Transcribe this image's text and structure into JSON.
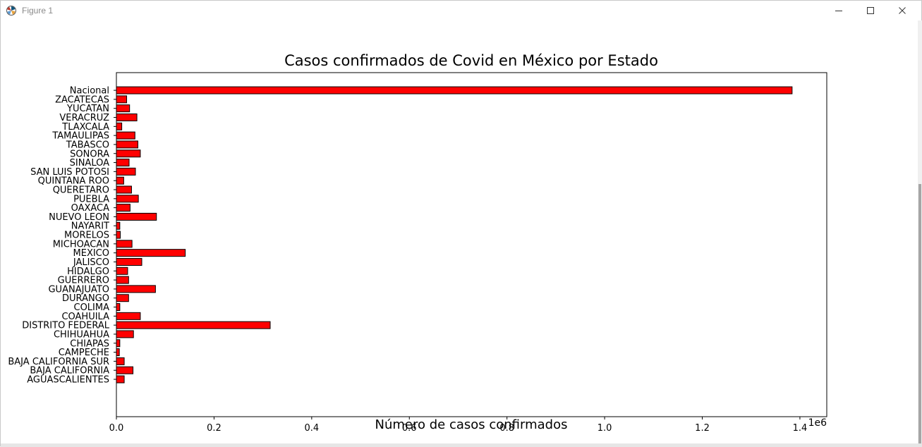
{
  "window": {
    "title": "Figure 1",
    "controls": {
      "minimize": "minimize-icon",
      "maximize": "maximize-icon",
      "close": "close-icon"
    }
  },
  "chart_data": {
    "type": "bar",
    "orientation": "horizontal",
    "title": "Casos confirmados de Covid en México por Estado",
    "xlabel": "Número de casos confirmados",
    "ylabel": "",
    "x_offset_label": "1e6",
    "xlim": [
      0,
      1.455
    ],
    "xticks": [
      0.0,
      0.2,
      0.4,
      0.6,
      0.8,
      1.0,
      1.2,
      1.4
    ],
    "xtick_labels": [
      "0.0",
      "0.2",
      "0.4",
      "0.6",
      "0.8",
      "1.0",
      "1.2",
      "1.4"
    ],
    "bar_color": "#ff0000",
    "edge_color": "#000000",
    "grid": false,
    "categories": [
      "AGUASCALIENTES",
      "BAJA CALIFORNIA",
      "BAJA CALIFORNIA SUR",
      "CAMPECHE",
      "CHIAPAS",
      "CHIHUAHUA",
      "DISTRITO FEDERAL",
      "COAHUILA",
      "COLIMA",
      "DURANGO",
      "GUANAJUATO",
      "GUERRERO",
      "HIDALGO",
      "JALISCO",
      "MEXICO",
      "MICHOACAN",
      "MORELOS",
      "NAYARIT",
      "NUEVO LEON",
      "OAXACA",
      "PUEBLA",
      "QUERETARO",
      "QUINTANA ROO",
      "SAN LUIS POTOSI",
      "SINALOA",
      "SONORA",
      "TABASCO",
      "TAMAULIPAS",
      "TLAXCALA",
      "VERACRUZ",
      "YUCATAN",
      "ZACATECAS",
      "Nacional"
    ],
    "values": [
      0.016,
      0.034,
      0.016,
      0.006,
      0.007,
      0.035,
      0.315,
      0.049,
      0.007,
      0.025,
      0.08,
      0.025,
      0.023,
      0.052,
      0.141,
      0.032,
      0.008,
      0.007,
      0.082,
      0.028,
      0.045,
      0.031,
      0.015,
      0.039,
      0.026,
      0.049,
      0.044,
      0.038,
      0.011,
      0.042,
      0.027,
      0.021,
      1.384
    ]
  }
}
